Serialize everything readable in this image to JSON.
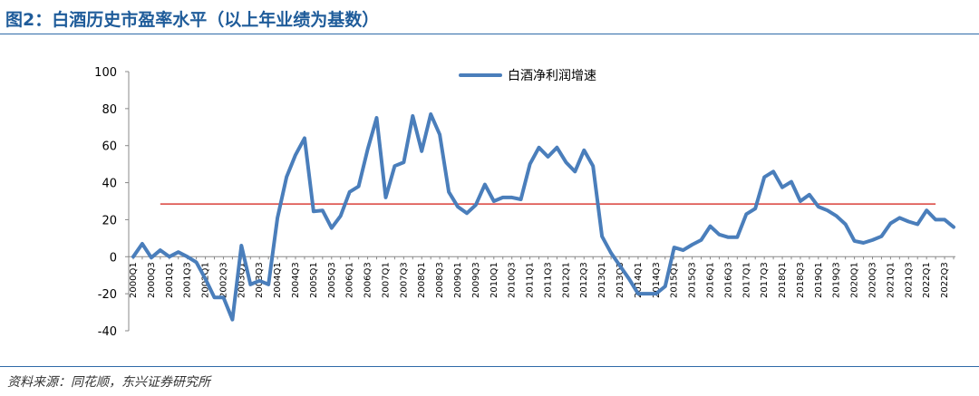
{
  "figure": {
    "title": "图2：白酒历史市盈率水平（以上年业绩为基数）",
    "source": "资料来源：同花顺，东兴证券研究所"
  },
  "chart_data": {
    "type": "line",
    "ylim": [
      -40,
      100
    ],
    "yticks": [
      -40,
      -20,
      0,
      20,
      40,
      60,
      80,
      100
    ],
    "tick_labels": [
      "2000Q1",
      "2000Q3",
      "2001Q1",
      "2001Q3",
      "2002Q1",
      "2002Q3",
      "2003Q1",
      "2003Q3",
      "2004Q1",
      "2004Q3",
      "2005Q1",
      "2005Q3",
      "2006Q1",
      "2006Q3",
      "2007Q1",
      "2007Q3",
      "2008Q1",
      "2008Q3",
      "2009Q1",
      "2009Q3",
      "2010Q1",
      "2010Q3",
      "2011Q1",
      "2011Q3",
      "2012Q1",
      "2012Q3",
      "2013Q1",
      "2013Q3",
      "2014Q1",
      "2014Q3",
      "2015Q1",
      "2015Q3",
      "2016Q1",
      "2016Q3",
      "2017Q1",
      "2017Q3",
      "2018Q1",
      "2018Q3",
      "2019Q1",
      "2019Q3",
      "2020Q1",
      "2020Q3",
      "2021Q1",
      "2021Q3",
      "2022Q1",
      "2022Q3"
    ],
    "series": [
      {
        "name": "白酒净利润增速",
        "color": "#4a7ebb",
        "values": [
          0,
          7,
          -0.5,
          3.5,
          0,
          2.5,
          0,
          -3,
          -12,
          -22,
          -22,
          -34,
          6,
          -15,
          -13,
          -15,
          21,
          43,
          55,
          64,
          24.5,
          25,
          15.5,
          22,
          35,
          38,
          58,
          75,
          32,
          49,
          51,
          76,
          57,
          77,
          66,
          35,
          27,
          23.5,
          28,
          39,
          30,
          32,
          32,
          31,
          50,
          59,
          54,
          59,
          51,
          46,
          57.5,
          49,
          11,
          2,
          -5,
          -12,
          -20,
          -20,
          -20,
          -16,
          5,
          3.5,
          6.5,
          9,
          16.5,
          12,
          10.5,
          10.5,
          23,
          26,
          43,
          46,
          37.5,
          40.5,
          30,
          33.5,
          27,
          25,
          22,
          17.5,
          8.5,
          7.5,
          9,
          11,
          18,
          21,
          19,
          17.5,
          25,
          20,
          20,
          16
        ]
      }
    ],
    "reference_line": {
      "value": 28.5,
      "color": "#d9413a"
    },
    "legend": "top-center"
  }
}
